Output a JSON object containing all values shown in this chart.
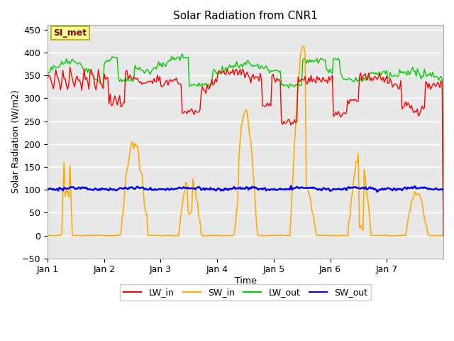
{
  "title": "Solar Radiation from CNR1",
  "xlabel": "Time",
  "ylabel": "Solar Radiation (W/m2)",
  "annotation": "SI_met",
  "ylim": [
    -50,
    460
  ],
  "xlim": [
    0,
    168
  ],
  "xtick_positions": [
    0,
    24,
    48,
    72,
    96,
    120,
    144
  ],
  "xtick_labels": [
    "Jan 1",
    "Jan 2",
    "Jan 3",
    "Jan 4",
    "Jan 5",
    "Jan 6",
    "Jan 7"
  ],
  "ytick_positions": [
    -50,
    0,
    50,
    100,
    150,
    200,
    250,
    300,
    350,
    400,
    450
  ],
  "colors": {
    "LW_in": "#ff0000",
    "SW_in": "#ffaa00",
    "LW_out": "#00cc00",
    "SW_out": "#0000ff"
  },
  "plot_bg": "#e8e8e8",
  "fig_bg": "#ffffff",
  "grid_color": "#ffffff",
  "annotation_bg": "#ffff99",
  "annotation_border": "#aaaa00",
  "annotation_text_color": "#880000"
}
